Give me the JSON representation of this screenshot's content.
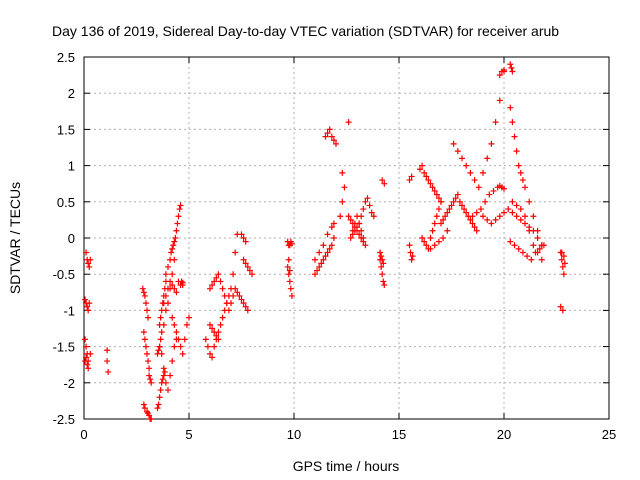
{
  "chart_data": {
    "type": "scatter",
    "title": "Day 136 of 2019, Sidereal Day-to-day VTEC variation (SDTVAR) for receiver arub",
    "xlabel": "GPS time / hours",
    "ylabel": "SDTVAR / TECUs",
    "xlim": [
      0,
      25
    ],
    "ylim": [
      -2.5,
      2.5
    ],
    "xticks": [
      0,
      5,
      10,
      15,
      20,
      25
    ],
    "yticks": [
      -2.5,
      -2,
      -1.5,
      -1,
      -0.5,
      0,
      0.5,
      1,
      1.5,
      2,
      2.5
    ],
    "grid": true,
    "marker": "+",
    "series": [
      {
        "name": "SDTVAR",
        "color": "#ff0000",
        "x": [
          0.1,
          0.15,
          0.2,
          0.25,
          0.3,
          0.05,
          0.1,
          0.15,
          0.2,
          0.25,
          0.05,
          0.1,
          0.15,
          0.2,
          0.05,
          0.1,
          0.15,
          0.2,
          0.3,
          1.1,
          1.1,
          1.15,
          2.8,
          2.85,
          2.9,
          2.95,
          3.0,
          3.05,
          2.85,
          2.9,
          2.95,
          3.0,
          3.05,
          3.1,
          2.85,
          2.9,
          3.0,
          3.05,
          3.1,
          3.15,
          3.2,
          3.1,
          3.15,
          3.2,
          3.6,
          3.65,
          3.7,
          3.75,
          3.8,
          3.85,
          3.9,
          3.5,
          3.55,
          3.6,
          3.65,
          3.7,
          3.75,
          3.8,
          3.85,
          3.6,
          3.65,
          3.7,
          3.8,
          3.9,
          4.0,
          4.1,
          4.2,
          4.3,
          3.5,
          3.55,
          3.6,
          3.7,
          3.8,
          3.9,
          4.0,
          4.1,
          4.2,
          4.3,
          4.4,
          3.9,
          4.0,
          4.1,
          4.15,
          4.2,
          4.25,
          4.3,
          4.35,
          4.4,
          4.45,
          4.5,
          4.55,
          4.6,
          4.65,
          4.7,
          3.8,
          3.9,
          4.0,
          4.1,
          4.2,
          4.3,
          4.4,
          4.5,
          4.6,
          4.7,
          4.2,
          4.3,
          4.4,
          4.5,
          4.6,
          4.7,
          4.8,
          4.9,
          5.0,
          5.8,
          5.9,
          6.0,
          6.1,
          6.2,
          6.3,
          6.4,
          6.5,
          6.6,
          6.7,
          6.8,
          6.9,
          7.0,
          7.1,
          7.2,
          7.3,
          6.0,
          6.1,
          6.2,
          6.3,
          6.4,
          6.5,
          6.6,
          6.7,
          6.8,
          6.9,
          7.0,
          7.1,
          7.2,
          7.3,
          7.4,
          7.5,
          7.6,
          7.7,
          7.8,
          6.0,
          6.1,
          6.2,
          6.3,
          6.4,
          7.6,
          7.7,
          7.8,
          7.9,
          8.0,
          7.5,
          7.6,
          7.7,
          9.7,
          9.75,
          9.8,
          9.85,
          9.9,
          9.7,
          9.75,
          9.8,
          9.85,
          9.9,
          9.75,
          9.8,
          11.0,
          11.1,
          11.2,
          11.3,
          11.4,
          11.5,
          11.6,
          11.7,
          11.8,
          11.9,
          11.0,
          11.2,
          11.4,
          11.6,
          11.8,
          11.5,
          11.6,
          11.7,
          11.8,
          11.9,
          12.0,
          11.9,
          12.2,
          12.3,
          12.4,
          12.3,
          12.6,
          12.6,
          12.7,
          12.8,
          12.9,
          13.0,
          13.1,
          13.2,
          13.3,
          13.4,
          12.7,
          12.8,
          12.9,
          13.0,
          13.1,
          13.2,
          13.3,
          12.8,
          12.9,
          13.0,
          13.1,
          13.2,
          13.3,
          13.4,
          13.5,
          13.6,
          13.7,
          13.8,
          14.1,
          14.15,
          14.2,
          14.25,
          14.3,
          14.2,
          14.3,
          14.1,
          14.15,
          14.2,
          14.25,
          15.5,
          15.55,
          15.6,
          15.65,
          15.5,
          15.6,
          16.0,
          16.1,
          16.2,
          16.3,
          16.4,
          16.5,
          16.6,
          16.7,
          16.8,
          16.9,
          17.0,
          16.1,
          16.2,
          16.3,
          16.4,
          16.5,
          16.6,
          16.7,
          16.8,
          16.9,
          17.0,
          16.5,
          16.7,
          16.9,
          17.1,
          17.3,
          17.0,
          17.1,
          17.2,
          17.3,
          17.4,
          17.5,
          17.6,
          17.7,
          17.8,
          17.9,
          18.0,
          18.1,
          18.2,
          18.3,
          18.4,
          18.5,
          18.6,
          18.7,
          17.6,
          17.8,
          18.0,
          18.2,
          18.4,
          18.6,
          18.8,
          19.0,
          19.2,
          19.4,
          19.6,
          19.8,
          20.0,
          18.5,
          18.7,
          18.9,
          19.1,
          19.3,
          19.5,
          19.7,
          19.8,
          19.9,
          20.0,
          19.8,
          19.9,
          20.0,
          20.3,
          20.35,
          20.4,
          19.0,
          19.2,
          19.4,
          19.6,
          19.8,
          20.0,
          20.2,
          20.4,
          20.6,
          20.8,
          21.0,
          21.2,
          21.4,
          21.6,
          21.8,
          20.3,
          20.4,
          20.5,
          20.6,
          20.7,
          20.8,
          20.9,
          21.0,
          21.2,
          21.4,
          21.6,
          21.8,
          20.4,
          20.6,
          20.8,
          21.0,
          21.2,
          21.4,
          21.6,
          21.8,
          20.3,
          20.5,
          20.7,
          20.9,
          21.1,
          21.3,
          21.5,
          21.7,
          21.9,
          22.7,
          22.75,
          22.8,
          22.85,
          22.9,
          22.7,
          22.8,
          22.75,
          22.85
        ],
        "y": [
          -0.2,
          -0.3,
          -0.35,
          -0.4,
          -0.3,
          -0.85,
          -0.9,
          -0.95,
          -1.0,
          -0.9,
          -1.4,
          -1.5,
          -1.6,
          -1.7,
          -1.7,
          -1.65,
          -1.75,
          -1.8,
          -1.6,
          -1.55,
          -1.7,
          -1.85,
          -0.7,
          -0.75,
          -0.8,
          -0.9,
          -1.0,
          -1.1,
          -1.3,
          -1.4,
          -1.5,
          -1.6,
          -1.7,
          -1.8,
          -2.3,
          -2.35,
          -2.4,
          -2.42,
          -2.45,
          -2.5,
          -2.5,
          -1.9,
          -1.95,
          -2.0,
          -1.2,
          -1.1,
          -1.0,
          -0.9,
          -0.8,
          -0.7,
          -0.6,
          -2.35,
          -2.3,
          -2.2,
          -2.1,
          -2.0,
          -1.95,
          -1.9,
          -1.85,
          -1.5,
          -1.4,
          -1.3,
          -1.2,
          -1.0,
          -0.9,
          -0.7,
          -0.5,
          -0.3,
          -1.6,
          -1.55,
          -1.5,
          -1.6,
          -1.8,
          -2.0,
          -2.1,
          -1.9,
          -1.7,
          -1.5,
          -1.4,
          -0.5,
          -0.4,
          -0.3,
          -0.2,
          -0.15,
          -0.1,
          -0.05,
          0.0,
          0.1,
          0.2,
          0.3,
          0.4,
          0.45,
          -0.6,
          -0.65,
          -0.9,
          -0.8,
          -0.7,
          -0.6,
          -0.65,
          -0.7,
          -0.75,
          -0.6,
          -0.65,
          -0.62,
          -1.1,
          -1.2,
          -1.3,
          -1.4,
          -1.5,
          -1.6,
          -1.4,
          -1.2,
          -1.1,
          -1.4,
          -1.5,
          -1.6,
          -1.65,
          -1.5,
          -1.4,
          -1.3,
          -1.2,
          -1.1,
          -1.0,
          -0.9,
          -0.8,
          -0.7,
          -0.5,
          -0.2,
          0.05,
          -0.7,
          -0.65,
          -0.6,
          -0.55,
          -0.5,
          -0.6,
          -0.7,
          -0.8,
          -0.9,
          -1.0,
          -0.9,
          -0.8,
          -0.7,
          -0.75,
          -0.8,
          -0.85,
          -0.9,
          -0.95,
          -1.0,
          -1.2,
          -1.25,
          -1.3,
          -1.35,
          -1.4,
          -0.3,
          -0.35,
          -0.4,
          -0.45,
          -0.5,
          0.05,
          0.0,
          -0.05,
          -0.05,
          -0.1,
          -0.1,
          -0.05,
          -0.08,
          -0.4,
          -0.5,
          -0.6,
          -0.7,
          -0.8,
          -0.3,
          -0.45,
          -0.5,
          -0.45,
          -0.4,
          -0.35,
          -0.3,
          -0.25,
          -0.2,
          -0.15,
          -0.1,
          0.0,
          -0.3,
          -0.2,
          -0.1,
          0.05,
          0.15,
          1.4,
          1.45,
          1.5,
          1.4,
          1.35,
          1.3,
          0.2,
          0.3,
          0.5,
          0.7,
          0.9,
          1.6,
          0.3,
          0.25,
          0.2,
          0.15,
          0.1,
          0.05,
          0.0,
          -0.05,
          -0.1,
          0.0,
          0.1,
          0.2,
          0.3,
          0.2,
          0.1,
          0.0,
          0.05,
          0.1,
          0.15,
          0.2,
          0.3,
          0.4,
          0.5,
          0.55,
          0.45,
          0.35,
          0.3,
          -0.3,
          -0.4,
          -0.5,
          -0.6,
          -0.65,
          0.8,
          0.75,
          -0.2,
          -0.25,
          -0.3,
          -0.35,
          -0.1,
          -0.2,
          -0.3,
          -0.25,
          0.8,
          0.85,
          0.95,
          1.0,
          0.9,
          0.85,
          0.8,
          0.75,
          0.7,
          0.65,
          0.6,
          0.55,
          0.5,
          0.0,
          -0.05,
          -0.1,
          -0.15,
          0.0,
          0.1,
          0.2,
          0.3,
          0.4,
          0.5,
          -0.15,
          -0.1,
          -0.05,
          0.0,
          0.1,
          0.2,
          0.25,
          0.3,
          0.35,
          0.4,
          0.45,
          0.5,
          0.55,
          0.6,
          0.5,
          0.45,
          0.4,
          0.35,
          0.3,
          0.25,
          0.2,
          0.15,
          0.1,
          1.3,
          1.2,
          1.1,
          1.0,
          0.9,
          0.8,
          0.7,
          0.9,
          1.1,
          1.3,
          1.6,
          1.9,
          2.3,
          0.3,
          0.35,
          0.4,
          0.5,
          0.6,
          0.65,
          0.7,
          0.72,
          0.7,
          0.68,
          2.25,
          2.3,
          2.32,
          2.4,
          2.35,
          2.3,
          0.3,
          0.25,
          0.2,
          0.25,
          0.3,
          0.35,
          0.4,
          0.35,
          0.3,
          0.25,
          0.2,
          0.15,
          0.1,
          0.0,
          -0.1,
          1.8,
          1.6,
          1.4,
          1.2,
          1.0,
          0.9,
          0.8,
          0.7,
          0.5,
          0.3,
          0.1,
          -0.1,
          0.5,
          0.45,
          0.4,
          0.3,
          0.1,
          -0.1,
          -0.2,
          -0.3,
          -0.05,
          -0.1,
          -0.15,
          -0.2,
          -0.25,
          -0.3,
          -0.2,
          -0.15,
          -0.1,
          -0.2,
          -0.3,
          -0.4,
          -0.5,
          -0.35,
          -0.95,
          -1.0,
          -0.2,
          -0.25
        ]
      }
    ]
  }
}
